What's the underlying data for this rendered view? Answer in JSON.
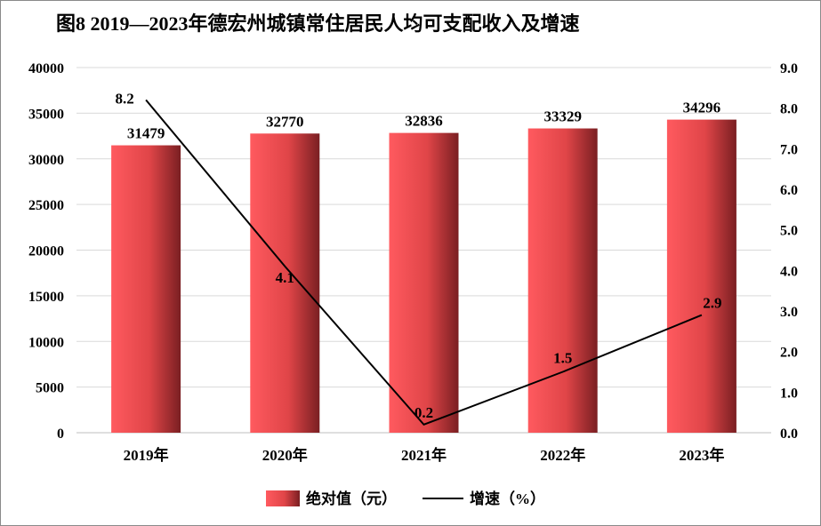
{
  "chart_data": {
    "type": "bar",
    "title": "图8  2019—2023年德宏州城镇常住居民人均可支配收入及增速",
    "categories": [
      "2019年",
      "2020年",
      "2021年",
      "2022年",
      "2023年"
    ],
    "series": [
      {
        "name": "绝对值（元）",
        "type": "bar",
        "axis": "left",
        "values": [
          31479,
          32770,
          32836,
          33329,
          34296
        ],
        "labels": [
          "31479",
          "32770",
          "32836",
          "33329",
          "34296"
        ]
      },
      {
        "name": "增速（%）",
        "type": "line",
        "axis": "right",
        "values": [
          8.2,
          4.1,
          0.2,
          1.5,
          2.9
        ],
        "labels": [
          "8.2",
          "4.1",
          "0.2",
          "1.5",
          "2.9"
        ]
      }
    ],
    "y_left": {
      "range": [
        0,
        40000
      ],
      "ticks": [
        "0",
        "5000",
        "10000",
        "15000",
        "20000",
        "25000",
        "30000",
        "35000",
        "40000"
      ]
    },
    "y_right": {
      "range": [
        0,
        9
      ],
      "ticks": [
        "0.0",
        "1.0",
        "2.0",
        "3.0",
        "4.0",
        "5.0",
        "6.0",
        "7.0",
        "8.0",
        "9.0"
      ]
    },
    "grid": true,
    "legend_position": "bottom",
    "colors": {
      "bar_light": "#ff5a5f",
      "bar_mid": "#e04548",
      "bar_dark": "#7a1f22",
      "line": "#000000",
      "grid": "#d9d9d9"
    }
  }
}
